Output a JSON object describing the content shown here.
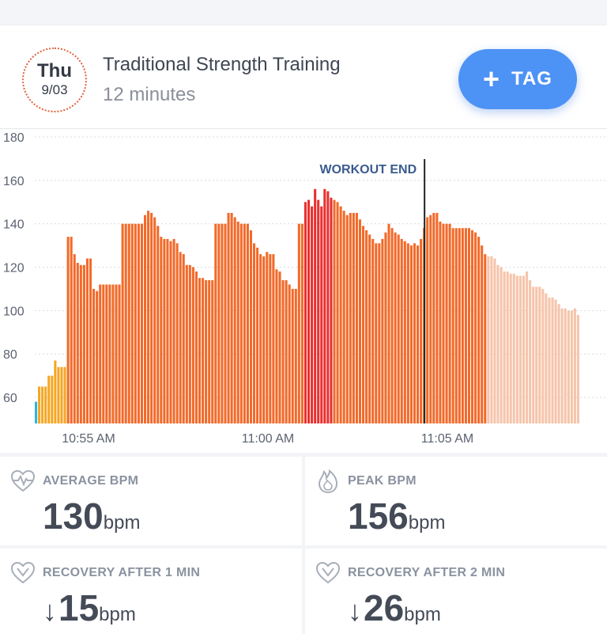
{
  "header": {
    "day": "Thu",
    "date": "9/03",
    "title": "Traditional Strength Training",
    "duration": "12 minutes",
    "tag_plus": "+",
    "tag_label": "TAG"
  },
  "chart_data": {
    "type": "bar",
    "yticks": [
      "180",
      "160",
      "140",
      "120",
      "100",
      "80",
      "60"
    ],
    "ylim": [
      48,
      180
    ],
    "xticks": [
      "10:55 AM",
      "11:00 AM",
      "11:05 AM"
    ],
    "annotation": "WORKOUT END",
    "workout_end_index": 121,
    "colors": {
      "zone_blue": "#2bb5e6",
      "zone_yellow": "#f5a623",
      "zone_orange": "#f26a2a",
      "zone_red": "#e8302f",
      "post_workout": "#f6c4aa"
    },
    "values": [
      58,
      65,
      65,
      65,
      70,
      70,
      77,
      74,
      74,
      74,
      134,
      134,
      126,
      122,
      121,
      121,
      124,
      124,
      110,
      109,
      112,
      112,
      112,
      112,
      112,
      112,
      112,
      140,
      140,
      140,
      140,
      140,
      140,
      140,
      144,
      146,
      145,
      143,
      139,
      134,
      133,
      133,
      132,
      133,
      131,
      127,
      126,
      121,
      121,
      120,
      118,
      115,
      115,
      114,
      114,
      114,
      140,
      140,
      140,
      140,
      145,
      145,
      143,
      141,
      140,
      140,
      140,
      137,
      131,
      129,
      126,
      125,
      127,
      126,
      126,
      119,
      118,
      114,
      114,
      112,
      110,
      110,
      140,
      140,
      150,
      151,
      148,
      156,
      151,
      148,
      156,
      155,
      152,
      151,
      150,
      148,
      146,
      144,
      145,
      145,
      145,
      142,
      139,
      137,
      135,
      133,
      131,
      131,
      133,
      136,
      140,
      138,
      136,
      135,
      133,
      132,
      131,
      130,
      131,
      130,
      133,
      138,
      143,
      144,
      145,
      145,
      141,
      140,
      140,
      140,
      138,
      138,
      138,
      138,
      138,
      138,
      137,
      136,
      134,
      130,
      126,
      125,
      125,
      124,
      121,
      120,
      118,
      118,
      117,
      117,
      116,
      116,
      116,
      118,
      114,
      111,
      111,
      111,
      110,
      108,
      106,
      106,
      105,
      103,
      101,
      101,
      100,
      100,
      101,
      98
    ],
    "colors_index": [
      0,
      1,
      1,
      1,
      1,
      1,
      1,
      1,
      1,
      1,
      2,
      2,
      2,
      2,
      2,
      2,
      2,
      2,
      2,
      2,
      2,
      2,
      2,
      2,
      2,
      2,
      2,
      2,
      2,
      2,
      2,
      2,
      2,
      2,
      2,
      2,
      2,
      2,
      2,
      2,
      2,
      2,
      2,
      2,
      2,
      2,
      2,
      2,
      2,
      2,
      2,
      2,
      2,
      2,
      2,
      2,
      2,
      2,
      2,
      2,
      2,
      2,
      2,
      2,
      2,
      2,
      2,
      2,
      2,
      2,
      2,
      2,
      2,
      2,
      2,
      2,
      2,
      2,
      2,
      2,
      2,
      2,
      2,
      2,
      3,
      3,
      3,
      3,
      3,
      3,
      3,
      3,
      3,
      2,
      2,
      2,
      2,
      2,
      2,
      2,
      2,
      2,
      2,
      2,
      2,
      2,
      2,
      2,
      2,
      2,
      2,
      2,
      2,
      2,
      2,
      2,
      2,
      2,
      2,
      2,
      2,
      2,
      2,
      2,
      2,
      2,
      2,
      2,
      2,
      2,
      2,
      2,
      2,
      2,
      2,
      2,
      2,
      2,
      2,
      2,
      2,
      4,
      4,
      4,
      4,
      4,
      4,
      4,
      4,
      4,
      4,
      4,
      4,
      4,
      4,
      4,
      4,
      4,
      4,
      4,
      4,
      4,
      4,
      4,
      4,
      4,
      4,
      4,
      4,
      4
    ]
  },
  "stats": {
    "average": {
      "label": "AVERAGE BPM",
      "value": "130",
      "unit": "bpm",
      "icon": "heart-pulse-icon"
    },
    "peak": {
      "label": "PEAK BPM",
      "value": "156",
      "unit": "bpm",
      "icon": "flame-icon"
    },
    "recovery1": {
      "label": "RECOVERY AFTER 1 MIN",
      "arrow": "↓",
      "value": "15",
      "unit": "bpm",
      "icon": "heart-down-icon"
    },
    "recovery2": {
      "label": "RECOVERY AFTER 2 MIN",
      "arrow": "↓",
      "value": "26",
      "unit": "bpm",
      "icon": "heart-down-icon"
    }
  }
}
